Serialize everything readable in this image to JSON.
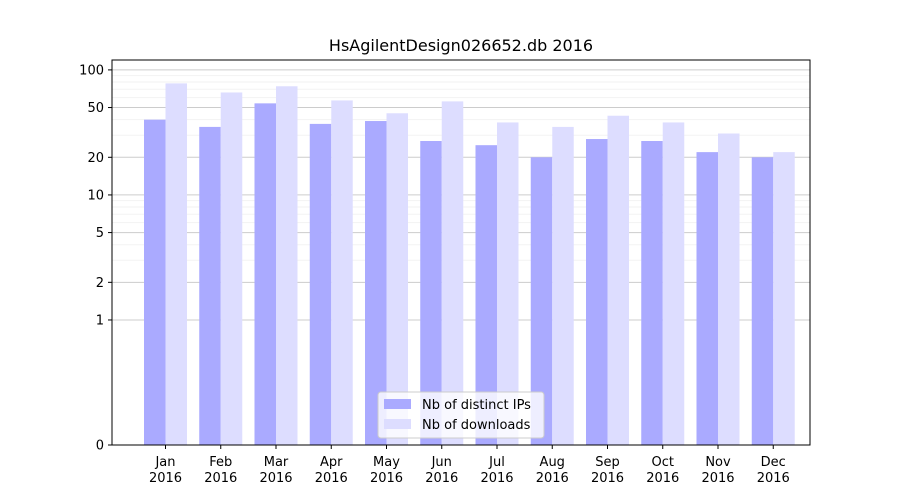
{
  "chart_data": {
    "type": "bar",
    "title": "HsAgilentDesign026652.db 2016",
    "xlabel": "",
    "ylabel": "",
    "yscale": "symlog",
    "ylim": [
      0,
      120
    ],
    "yticks": [
      0,
      1,
      2,
      5,
      10,
      20,
      50,
      100
    ],
    "ytick_labels": [
      "0",
      "1",
      "2",
      "5",
      "10",
      "20",
      "50",
      "100"
    ],
    "categories": [
      "Jan\n2016",
      "Feb\n2016",
      "Mar\n2016",
      "Apr\n2016",
      "May\n2016",
      "Jun\n2016",
      "Jul\n2016",
      "Aug\n2016",
      "Sep\n2016",
      "Oct\n2016",
      "Nov\n2016",
      "Dec\n2016"
    ],
    "series": [
      {
        "name": "Nb of distinct IPs",
        "color": "#aaaaff",
        "values": [
          40,
          35,
          54,
          37,
          39,
          27,
          25,
          20,
          28,
          27,
          22,
          20
        ]
      },
      {
        "name": "Nb of downloads",
        "color": "#ddddff",
        "values": [
          78,
          66,
          74,
          57,
          45,
          56,
          38,
          35,
          43,
          38,
          31,
          22
        ]
      }
    ],
    "grid": true,
    "legend_position": "bottom-center"
  }
}
